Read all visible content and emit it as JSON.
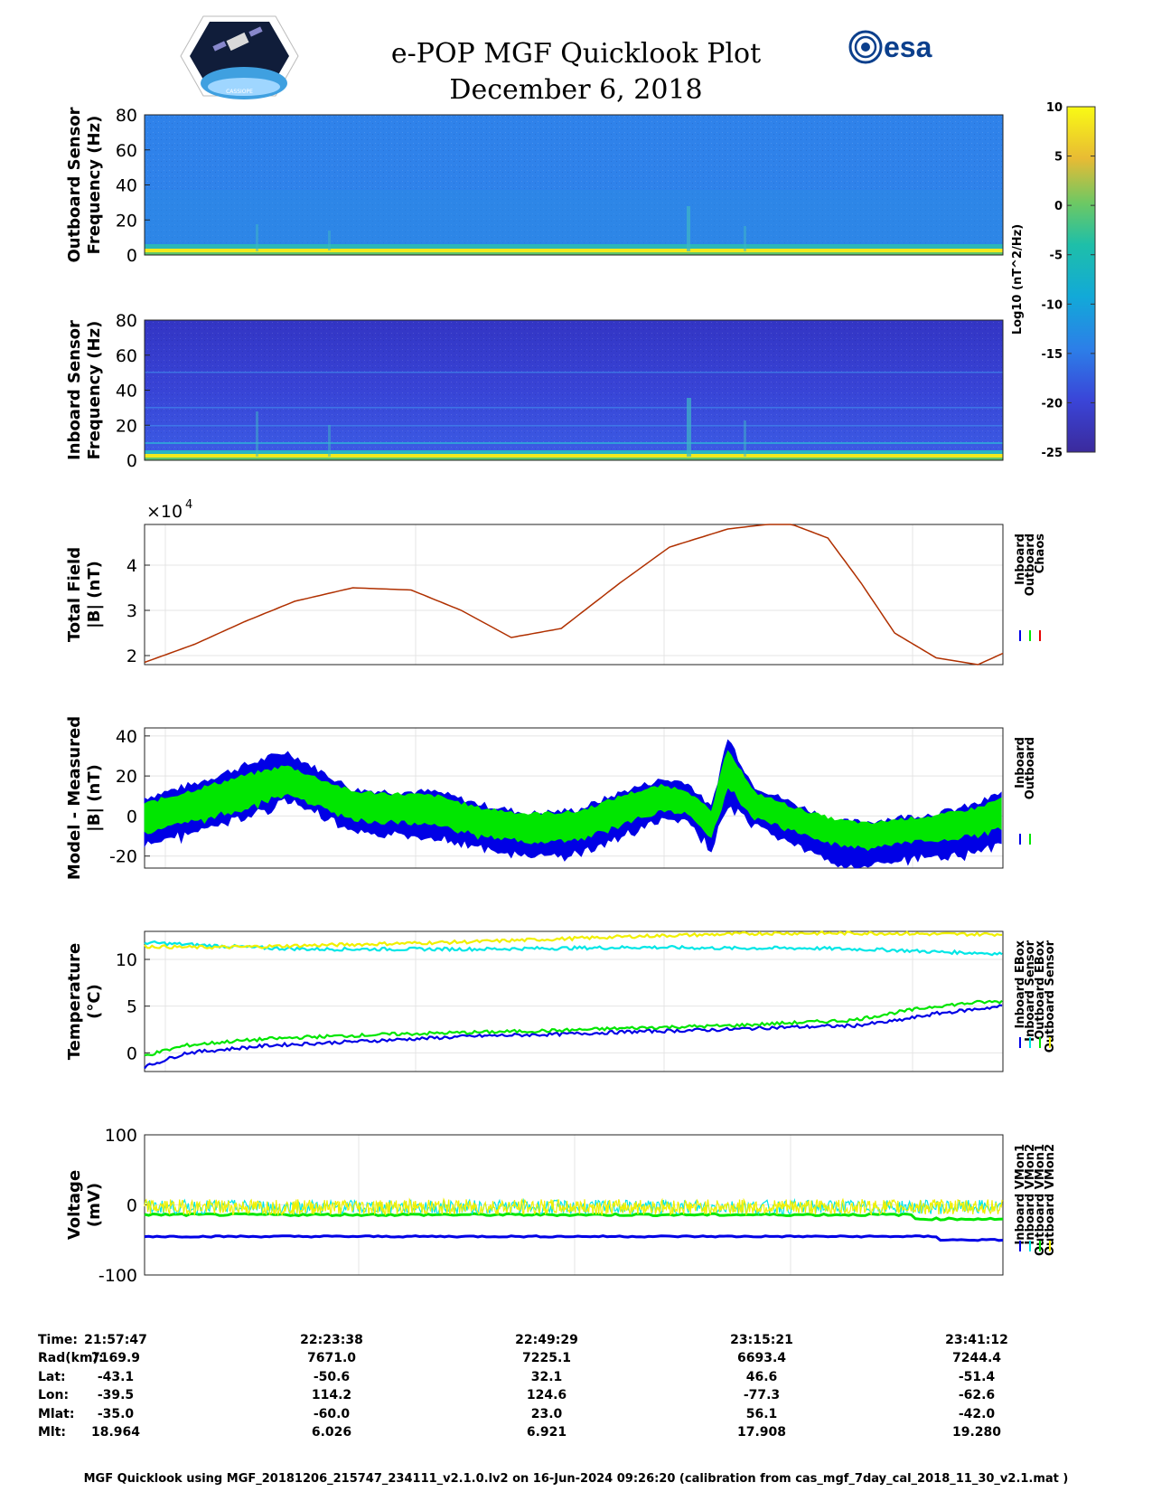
{
  "header": {
    "title": "e-POP MGF Quicklook Plot",
    "date": "December 6, 2018",
    "esa_logo_text": "esa",
    "cassiope_logo_text": "CASSIOPE"
  },
  "colors": {
    "inboard": "#0000e6",
    "outboard": "#00e600",
    "chaos": "#e60000",
    "cyan": "#00e6e6",
    "yellow": "#f0f000",
    "curve": "#b03000",
    "spec_top": "#2d7fe8",
    "spec_bottom": "#3a3fd0"
  },
  "colorbar": {
    "ticks": [
      "10",
      "5",
      "0",
      "-5",
      "-10",
      "-15",
      "-20",
      "-25"
    ],
    "label": "Log10 (nT^2/Hz)"
  },
  "chart_data": [
    {
      "type": "heatmap",
      "id": "outboard_spectrogram",
      "ylabel": [
        "Outboard Sensor",
        "Frequency (Hz)"
      ],
      "yticks": [
        "80",
        "60",
        "40",
        "20",
        "0"
      ],
      "ylim": [
        0,
        80
      ],
      "clim": [
        -25,
        10
      ]
    },
    {
      "type": "heatmap",
      "id": "inboard_spectrogram",
      "ylabel": [
        "Inboard Sensor",
        "Frequency (Hz)"
      ],
      "yticks": [
        "80",
        "60",
        "40",
        "20",
        "0"
      ],
      "ylim": [
        0,
        80
      ],
      "clim": [
        -25,
        10
      ]
    },
    {
      "type": "line",
      "id": "total_field",
      "ylabel": [
        "Total Field",
        "|B| (nT)"
      ],
      "exponent": "×10",
      "exponent_power": "4",
      "ylim": [
        1.8,
        4.9
      ],
      "yticks": [
        "4",
        "3",
        "2"
      ],
      "legend": [
        "Inboard",
        "Outboard",
        "Chaos"
      ],
      "x_minutes": [
        0,
        6,
        12,
        18,
        25,
        32,
        38,
        44,
        50,
        57,
        63,
        70,
        77,
        82,
        86,
        90,
        95,
        100,
        103
      ],
      "values": [
        1.85,
        2.25,
        2.75,
        3.2,
        3.5,
        3.45,
        3.0,
        2.4,
        2.6,
        3.6,
        4.4,
        4.8,
        4.95,
        4.6,
        3.6,
        2.5,
        1.95,
        1.8,
        2.05
      ]
    },
    {
      "type": "area",
      "id": "model_minus_measured",
      "ylabel": [
        "Model - Measured",
        "|B| (nT)"
      ],
      "ylim": [
        -26,
        44
      ],
      "yticks": [
        "40",
        "20",
        "0",
        "-20"
      ],
      "legend": [
        "Inboard",
        "Outboard"
      ],
      "x_minutes": [
        0,
        6,
        12,
        17,
        20,
        25,
        30,
        35,
        40,
        46,
        52,
        58,
        62,
        65,
        68,
        70,
        73,
        78,
        83,
        87,
        90,
        95,
        100,
        103
      ],
      "inboard_center": [
        -3,
        4,
        12,
        20,
        14,
        2,
        1,
        1,
        -5,
        -10,
        -8,
        2,
        8,
        7,
        -6,
        22,
        5,
        -4,
        -14,
        -14,
        -12,
        -10,
        -6,
        0
      ],
      "inboard_halfwidth": [
        12,
        12,
        13,
        12,
        11,
        11,
        11,
        11,
        11,
        11,
        11,
        11,
        10,
        10,
        10,
        17,
        10,
        10,
        11,
        11,
        11,
        11,
        12,
        12
      ],
      "outboard_center": [
        -1,
        5,
        12,
        18,
        13,
        5,
        4,
        3,
        -3,
        -6,
        -5,
        4,
        9,
        7,
        -4,
        24,
        6,
        -2,
        -8,
        -10,
        -8,
        -6,
        -3,
        2
      ],
      "outboard_halfwidth": [
        7,
        8,
        8,
        7,
        7,
        7,
        7,
        7,
        7,
        7,
        7,
        7,
        6,
        6,
        6,
        10,
        6,
        6,
        6,
        6,
        6,
        6,
        7,
        7
      ]
    },
    {
      "type": "line",
      "id": "temperature",
      "ylabel": [
        "Temperature",
        "(°C)"
      ],
      "ylim": [
        -2,
        13
      ],
      "yticks": [
        "10",
        "5",
        "0"
      ],
      "legend": [
        "Inboard EBox",
        "Inboard Sensor",
        "Outboard EBox",
        "Outboard Sensor"
      ],
      "x_minutes": [
        0,
        5,
        10,
        15,
        20,
        30,
        40,
        50,
        60,
        70,
        75,
        80,
        85,
        90,
        95,
        100,
        103
      ],
      "inboard_ebox": [
        -1.5,
        0,
        0.4,
        0.8,
        1.0,
        1.4,
        1.8,
        2.0,
        2.3,
        2.5,
        2.7,
        2.8,
        2.9,
        3.4,
        4.2,
        4.7,
        5.0
      ],
      "inboard_sensor": [
        11.8,
        11.6,
        11.4,
        11.2,
        11.1,
        11.1,
        11.1,
        11.2,
        11.3,
        11.2,
        11.2,
        11.2,
        11.1,
        11.0,
        10.8,
        10.7,
        10.6
      ],
      "outboard_ebox": [
        -0.3,
        0.8,
        1.2,
        1.5,
        1.7,
        2.0,
        2.2,
        2.4,
        2.7,
        2.9,
        3.1,
        3.3,
        3.5,
        4.3,
        5.0,
        5.4,
        5.5
      ],
      "outboard_sensor": [
        11.4,
        11.3,
        11.3,
        11.4,
        11.5,
        11.7,
        11.9,
        12.2,
        12.5,
        12.7,
        12.8,
        12.8,
        12.8,
        12.8,
        12.7,
        12.7,
        12.7
      ]
    },
    {
      "type": "line",
      "id": "voltage",
      "ylabel": [
        "Voltage",
        "(mV)"
      ],
      "ylim": [
        -100,
        100
      ],
      "yticks": [
        "100",
        "0",
        "-100"
      ],
      "legend": [
        "Inboard VMon1",
        "Inboard VMon2",
        "Outboard VMon1",
        "Outboard VMon2"
      ],
      "inboard_vmon1": -45,
      "inboard_vmon2": 0,
      "outboard_vmon1": -14,
      "outboard_vmon2": -3
    }
  ],
  "info": {
    "labels": [
      "Time:",
      "Rad(km):",
      "Lat:",
      "Lon:",
      "Mlat:",
      "Mlt:"
    ],
    "columns": [
      [
        "21:57:47",
        "7169.9",
        "-43.1",
        "-39.5",
        "-35.0",
        "18.964"
      ],
      [
        "22:23:38",
        "7671.0",
        "-50.6",
        "114.2",
        "-60.0",
        "6.026"
      ],
      [
        "22:49:29",
        "7225.1",
        "32.1",
        "124.6",
        "23.0",
        "6.921"
      ],
      [
        "23:15:21",
        "6693.4",
        "46.6",
        "-77.3",
        "56.1",
        "17.908"
      ],
      [
        "23:41:12",
        "7244.4",
        "-51.4",
        "-62.6",
        "-42.0",
        "19.280"
      ]
    ]
  },
  "footer": "MGF Quicklook using MGF_20181206_215747_234111_v2.1.0.lv2 on 16-Jun-2024 09:26:20 (calibration from cas_mgf_7day_cal_2018_11_30_v2.1.mat )"
}
